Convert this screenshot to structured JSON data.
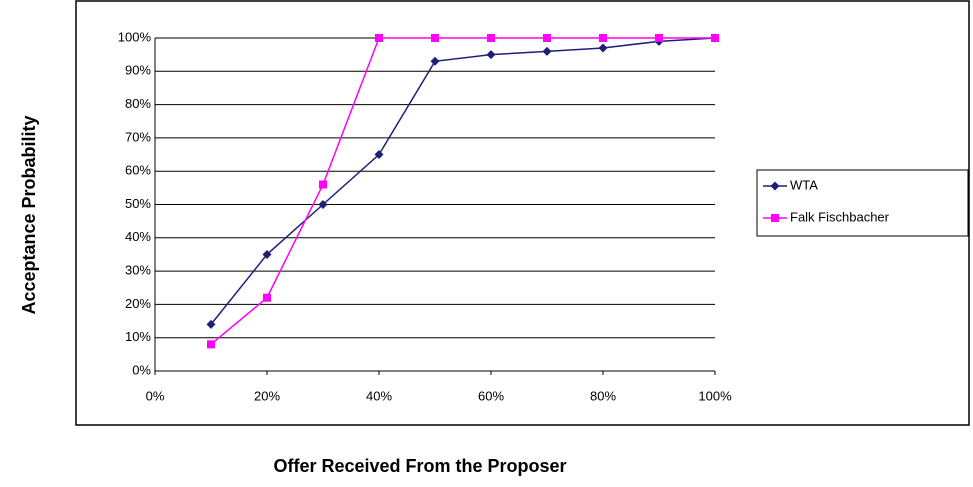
{
  "chart_data": {
    "type": "line",
    "x_label": "Offer Received From the Proposer",
    "y_label": "Acceptance Probability",
    "x": [
      10,
      20,
      30,
      40,
      50,
      60,
      70,
      80,
      90,
      100
    ],
    "series": [
      {
        "name": "WTA",
        "color": "#1f1f7a",
        "marker": "diamond",
        "values": [
          14,
          35,
          50,
          65,
          93,
          95,
          96,
          97,
          99,
          100
        ]
      },
      {
        "name": "Falk Fischbacher",
        "color": "#ff00ff",
        "marker": "square",
        "values": [
          8,
          22,
          56,
          100,
          100,
          100,
          100,
          100,
          100,
          100
        ]
      }
    ],
    "xlim": [
      0,
      100
    ],
    "xticks": [
      {
        "value": 0,
        "label": "0%"
      },
      {
        "value": 20,
        "label": "20%"
      },
      {
        "value": 40,
        "label": "40%"
      },
      {
        "value": 60,
        "label": "60%"
      },
      {
        "value": 80,
        "label": "80%"
      },
      {
        "value": 100,
        "label": "100%"
      }
    ],
    "ylim": [
      0,
      100
    ],
    "yticks": [
      {
        "value": 0,
        "label": "0%"
      },
      {
        "value": 10,
        "label": "10%"
      },
      {
        "value": 20,
        "label": "20%"
      },
      {
        "value": 30,
        "label": "30%"
      },
      {
        "value": 40,
        "label": "40%"
      },
      {
        "value": 50,
        "label": "50%"
      },
      {
        "value": 60,
        "label": "60%"
      },
      {
        "value": 70,
        "label": "70%"
      },
      {
        "value": 80,
        "label": "80%"
      },
      {
        "value": 90,
        "label": "90%"
      },
      {
        "value": 100,
        "label": "100%"
      }
    ],
    "grid": true,
    "legend": "right"
  }
}
